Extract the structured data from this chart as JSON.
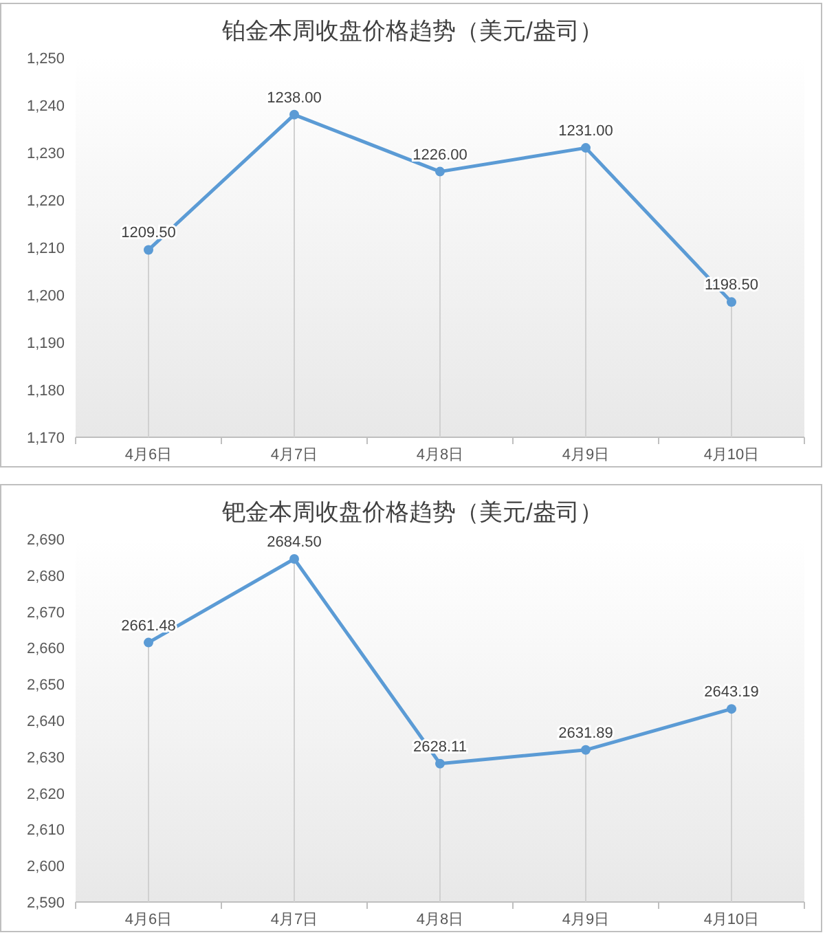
{
  "chart_data": [
    {
      "type": "line",
      "title": "铂金本周收盘价格趋势（美元/盎司）",
      "categories": [
        "4月6日",
        "4月7日",
        "4月8日",
        "4月9日",
        "4月10日"
      ],
      "series": [
        {
          "color": "#5b9bd5",
          "values": [
            1209.5,
            1238,
            1226,
            1231,
            1198.5
          ],
          "value_labels": [
            "1209.50",
            "1238.00",
            "1226.00",
            "1231.00",
            "1198.50"
          ]
        }
      ],
      "ylim": [
        1170,
        1250
      ],
      "yticks": [
        {
          "value": 1170,
          "label": "1,170"
        },
        {
          "value": 1180,
          "label": "1,180"
        },
        {
          "value": 1190,
          "label": "1,190"
        },
        {
          "value": 1200,
          "label": "1,200"
        },
        {
          "value": 1210,
          "label": "1,210"
        },
        {
          "value": 1220,
          "label": "1,220"
        },
        {
          "value": 1230,
          "label": "1,230"
        },
        {
          "value": 1240,
          "label": "1,240"
        },
        {
          "value": 1250,
          "label": "1,250"
        }
      ],
      "marker": "circle",
      "grid": "x"
    },
    {
      "type": "line",
      "title": "钯金本周收盘价格趋势（美元/盎司）",
      "categories": [
        "4月6日",
        "4月7日",
        "4月8日",
        "4月9日",
        "4月10日"
      ],
      "series": [
        {
          "color": "#5b9bd5",
          "values": [
            2661.48,
            2684.5,
            2628.11,
            2631.89,
            2643.19
          ],
          "value_labels": [
            "2661.48",
            "2684.50",
            "2628.11",
            "2631.89",
            "2643.19"
          ]
        }
      ],
      "ylim": [
        2590,
        2690
      ],
      "yticks": [
        {
          "value": 2590,
          "label": "2,590"
        },
        {
          "value": 2600,
          "label": "2,600"
        },
        {
          "value": 2610,
          "label": "2,610"
        },
        {
          "value": 2620,
          "label": "2,620"
        },
        {
          "value": 2630,
          "label": "2,630"
        },
        {
          "value": 2640,
          "label": "2,640"
        },
        {
          "value": 2650,
          "label": "2,650"
        },
        {
          "value": 2660,
          "label": "2,660"
        },
        {
          "value": 2670,
          "label": "2,670"
        },
        {
          "value": 2680,
          "label": "2,680"
        },
        {
          "value": 2690,
          "label": "2,690"
        }
      ],
      "marker": "circle",
      "grid": "x"
    }
  ]
}
